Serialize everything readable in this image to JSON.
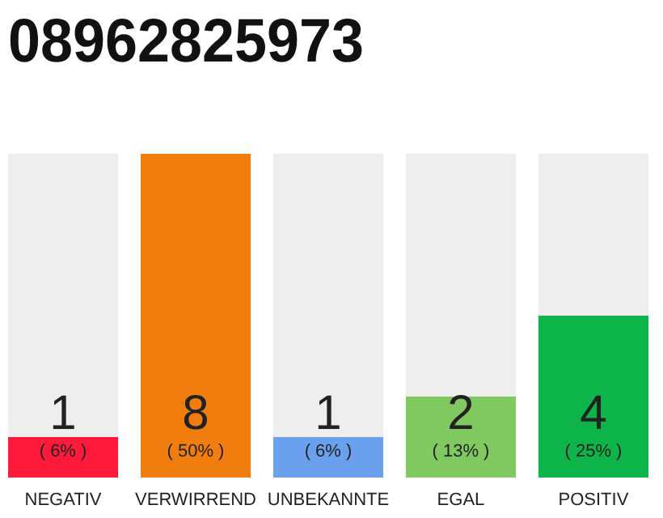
{
  "chart_data": {
    "type": "bar",
    "title": "08962825973",
    "categories": [
      "NEGATIV",
      "VERWIRREND",
      "UNBEKANNTE",
      "EGAL",
      "POSITIV"
    ],
    "values": [
      1,
      8,
      1,
      2,
      4
    ],
    "colors": [
      "#ff1a3c",
      "#f07d0e",
      "#6aa0ee",
      "#80c860",
      "#0cb44a"
    ],
    "ylim": [
      0,
      8
    ],
    "data_labels": true,
    "annotations": [
      "( 6% )",
      "( 50% )",
      "( 6% )",
      "( 13% )",
      "( 25% )"
    ]
  }
}
